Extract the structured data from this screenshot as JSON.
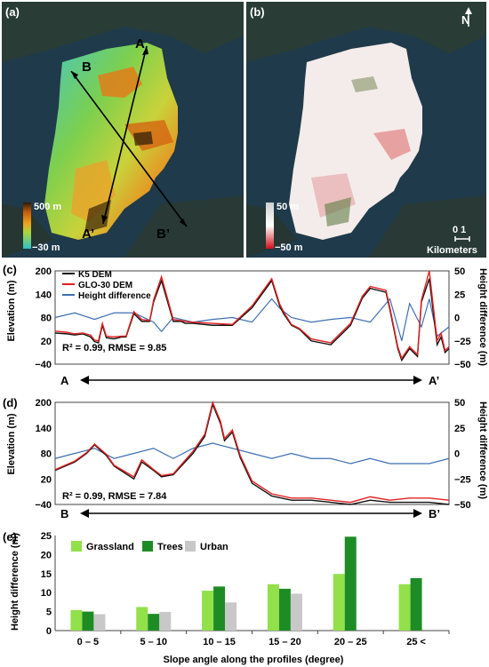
{
  "panels": {
    "a": "(a)",
    "b": "(b)",
    "c": "(c)",
    "d": "(d)",
    "e": "(e)"
  },
  "map_a": {
    "labels": {
      "A": "A",
      "B": "B",
      "A2": "A’",
      "B2": "B’"
    },
    "colorbar": {
      "max": "500 m",
      "min": "−30 m"
    }
  },
  "map_b": {
    "colorbar": {
      "max": "50 m",
      "min": "−50 m"
    },
    "scale": {
      "ticks": "0 1",
      "unit": "Kilometers"
    },
    "north": "N"
  },
  "colors": {
    "k5": "#111111",
    "glo": "#e32222",
    "diff": "#3d6fb3",
    "grassland": "#92e04a",
    "trees": "#1e8c25",
    "urban": "#c8c8c8",
    "ocean": "#1f3a4a",
    "land_low": "#4fc9c6",
    "land_mid": "#a9d63e",
    "land_high": "#e27c1a"
  },
  "chart_data": [
    {
      "type": "line",
      "title": "",
      "ylabel": "Elevation (m)",
      "y2label": "Height difference (m)",
      "ylim": [
        -40,
        200
      ],
      "y2lim": [
        -50,
        50
      ],
      "yticks": [
        "−40",
        "20",
        "80",
        "140",
        "200"
      ],
      "y2ticks": [
        "−50",
        "−25",
        "0",
        "25",
        "50"
      ],
      "stats": "R² = 0.99, RMSE = 9.85",
      "x_start": "A",
      "x_end": "A’",
      "legend": [
        "K5 DEM",
        "GLO-30 DEM",
        "Height difference"
      ],
      "series": [
        {
          "name": "K5 DEM",
          "x": [
            0,
            3,
            5,
            7,
            9,
            10,
            11,
            12,
            13,
            15,
            17,
            18,
            20,
            22,
            24,
            25,
            27,
            30,
            32,
            33,
            35,
            40,
            45,
            50,
            55,
            57,
            58,
            60,
            62,
            65,
            70,
            75,
            78,
            80,
            82,
            84,
            85,
            86,
            87,
            88,
            90,
            92,
            93,
            95,
            97,
            98,
            99,
            100
          ],
          "y": [
            40,
            38,
            35,
            38,
            30,
            18,
            15,
            60,
            28,
            25,
            30,
            30,
            90,
            70,
            70,
            120,
            175,
            70,
            70,
            65,
            65,
            60,
            60,
            105,
            175,
            110,
            90,
            60,
            50,
            20,
            10,
            60,
            130,
            155,
            150,
            145,
            100,
            50,
            0,
            -30,
            0,
            -20,
            120,
            180,
            10,
            30,
            -10,
            0
          ]
        },
        {
          "name": "GLO-30 DEM",
          "x": [
            0,
            3,
            5,
            7,
            9,
            10,
            11,
            12,
            13,
            15,
            17,
            18,
            20,
            22,
            24,
            25,
            27,
            30,
            32,
            33,
            35,
            40,
            45,
            50,
            55,
            57,
            58,
            60,
            62,
            65,
            70,
            75,
            78,
            80,
            82,
            84,
            85,
            86,
            87,
            88,
            90,
            92,
            93,
            95,
            97,
            98,
            99,
            100
          ],
          "y": [
            45,
            42,
            38,
            40,
            35,
            22,
            20,
            65,
            32,
            30,
            32,
            32,
            95,
            75,
            72,
            125,
            185,
            75,
            72,
            70,
            68,
            65,
            62,
            110,
            180,
            115,
            95,
            62,
            52,
            25,
            15,
            65,
            135,
            160,
            155,
            150,
            105,
            55,
            5,
            -25,
            5,
            -15,
            125,
            200,
            20,
            40,
            -5,
            5
          ]
        },
        {
          "name": "Height difference",
          "x": [
            0,
            5,
            10,
            15,
            20,
            25,
            27,
            30,
            35,
            40,
            45,
            50,
            55,
            57,
            60,
            65,
            70,
            75,
            80,
            85,
            88,
            90,
            93,
            95,
            97,
            100
          ],
          "y": [
            0,
            5,
            -2,
            5,
            5,
            -5,
            -15,
            0,
            -5,
            -2,
            0,
            -5,
            20,
            10,
            0,
            -5,
            -2,
            0,
            -5,
            20,
            -25,
            15,
            -10,
            20,
            -20,
            -10
          ]
        }
      ]
    },
    {
      "type": "line",
      "title": "",
      "ylabel": "Elevation (m)",
      "y2label": "Height difference (m)",
      "ylim": [
        -40,
        200
      ],
      "y2lim": [
        -50,
        50
      ],
      "yticks": [
        "−40",
        "20",
        "80",
        "140",
        "200"
      ],
      "y2ticks": [
        "−50",
        "−25",
        "0",
        "25",
        "50"
      ],
      "stats": "R² = 0.99, RMSE = 7.84",
      "x_start": "B",
      "x_end": "B’",
      "series": [
        {
          "name": "K5 DEM",
          "x": [
            0,
            5,
            8,
            10,
            13,
            15,
            20,
            22,
            25,
            27,
            30,
            35,
            38,
            40,
            42,
            43,
            45,
            47,
            50,
            55,
            60,
            65,
            70,
            75,
            80,
            85,
            90,
            95,
            100
          ],
          "y": [
            40,
            60,
            80,
            100,
            75,
            50,
            20,
            60,
            40,
            25,
            30,
            80,
            120,
            195,
            150,
            110,
            130,
            70,
            10,
            -20,
            -30,
            -30,
            -35,
            -40,
            -30,
            -35,
            -35,
            -35,
            -40
          ]
        },
        {
          "name": "GLO-30 DEM",
          "x": [
            0,
            5,
            8,
            10,
            13,
            15,
            20,
            22,
            25,
            27,
            30,
            35,
            38,
            40,
            42,
            43,
            45,
            47,
            50,
            55,
            60,
            65,
            70,
            75,
            80,
            85,
            90,
            95,
            100
          ],
          "y": [
            42,
            62,
            82,
            102,
            78,
            52,
            25,
            65,
            42,
            28,
            32,
            85,
            125,
            200,
            155,
            115,
            135,
            75,
            15,
            -15,
            -25,
            -25,
            -30,
            -35,
            -22,
            -30,
            -25,
            -25,
            -30
          ]
        },
        {
          "name": "Height difference",
          "x": [
            0,
            5,
            10,
            15,
            20,
            25,
            30,
            35,
            40,
            45,
            50,
            55,
            60,
            65,
            70,
            75,
            80,
            85,
            90,
            95,
            100
          ],
          "y": [
            -5,
            0,
            5,
            -5,
            0,
            5,
            -5,
            5,
            10,
            5,
            0,
            -5,
            0,
            -5,
            -5,
            -10,
            -5,
            -10,
            -10,
            -10,
            -5
          ]
        }
      ]
    },
    {
      "type": "bar",
      "title": "",
      "xlabel": "Slope angle along the profiles (degree)",
      "ylabel": "Height difference (m)",
      "ylim": [
        0,
        25
      ],
      "yticks": [
        "0",
        "5",
        "10",
        "15",
        "20",
        "25"
      ],
      "categories": [
        "0 – 5",
        "5 – 10",
        "10 – 15",
        "15 – 20",
        "20 – 25",
        "25 <"
      ],
      "legend": [
        "Grassland",
        "Trees",
        "Urban"
      ],
      "series": [
        {
          "name": "Grassland",
          "values": [
            5.4,
            6.2,
            10.5,
            12.2,
            14.9,
            12.2
          ]
        },
        {
          "name": "Trees",
          "values": [
            5.0,
            4.4,
            11.6,
            11.0,
            24.7,
            13.8
          ]
        },
        {
          "name": "Urban",
          "values": [
            4.3,
            4.9,
            7.4,
            9.7,
            null,
            null
          ]
        }
      ]
    }
  ]
}
